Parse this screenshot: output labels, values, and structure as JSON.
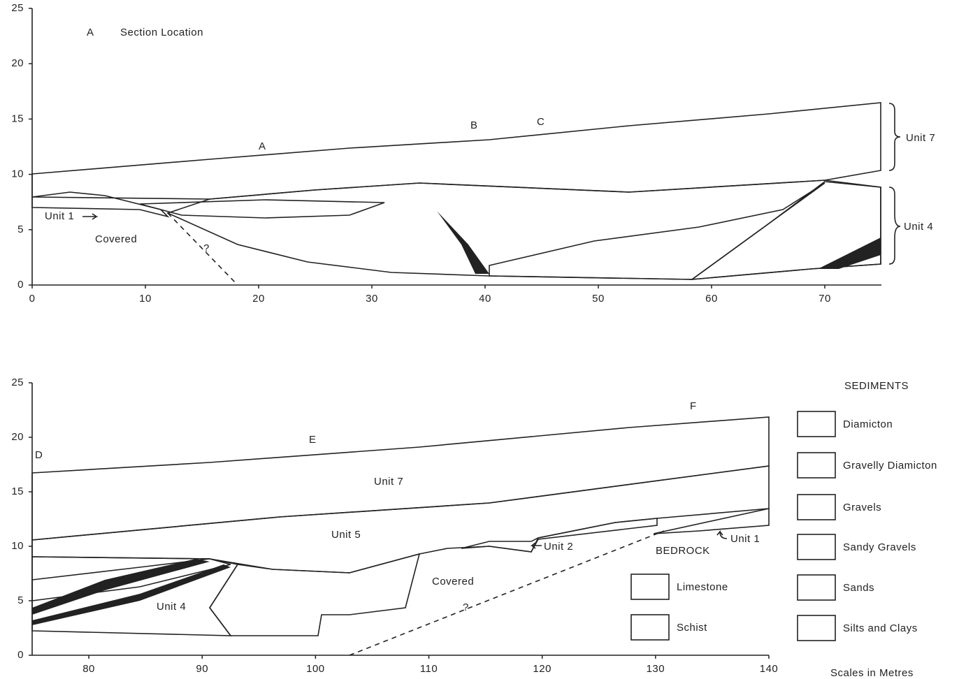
{
  "sections": [
    {
      "xlim": [
        0,
        75
      ],
      "ylim": [
        0,
        25
      ],
      "xticks": [
        0,
        10,
        20,
        30,
        40,
        50,
        60,
        70
      ],
      "yticks": [
        0,
        5,
        10,
        15,
        20,
        25
      ],
      "labels": [
        "A",
        "Section Location",
        "A",
        "B",
        "C",
        "Unit 7",
        "Unit 4",
        "Unit 1",
        "Covered",
        "?"
      ]
    },
    {
      "xlim": [
        75,
        140
      ],
      "ylim": [
        0,
        25
      ],
      "xticks": [
        80,
        90,
        100,
        110,
        120,
        130,
        140
      ],
      "yticks": [
        0,
        5,
        10,
        15,
        20,
        25
      ],
      "labels": [
        "D",
        "E",
        "F",
        "Unit 7",
        "Unit 5",
        "Unit 4",
        "Covered",
        "?",
        "Unit 2",
        "Unit 1",
        "BEDROCK"
      ]
    }
  ],
  "legend": {
    "title": "SEDIMENTS",
    "sediments": [
      "Diamicton",
      "Gravelly Diamicton",
      "Gravels",
      "Sandy Gravels",
      "Sands",
      "Silts and Clays"
    ],
    "rocks": [
      "Limestone",
      "Schist"
    ],
    "scale_note": "Scales in Metres"
  }
}
